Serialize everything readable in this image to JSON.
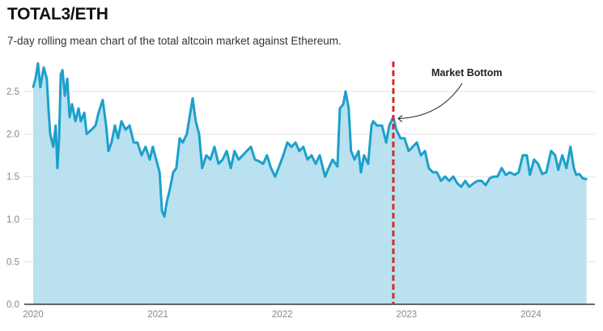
{
  "title": "TOTAL3/ETH",
  "subtitle": "7-day rolling mean chart of the total altcoin market against Ethereum.",
  "colors": {
    "line": "#1ca0cc",
    "fill": "#b9e1ef",
    "marker_line": "#d42a25",
    "grid": "#e3e3e3",
    "axis": "#111111"
  },
  "chart_data": {
    "type": "area",
    "title": "TOTAL3/ETH",
    "xlabel": "",
    "ylabel": "",
    "ylim": [
      0,
      2.9
    ],
    "xlim": [
      "2019-12-20",
      "2024-06-30"
    ],
    "grid": true,
    "y_ticks": [
      "0.0",
      "0.5",
      "1.0",
      "1.5",
      "2.0",
      "2.5"
    ],
    "x_ticks": [
      "2020",
      "2021",
      "2022",
      "2023",
      "2024"
    ],
    "annotation": {
      "label": "Market Bottom",
      "date": "2022-11-23",
      "style": "red dashed vertical line with arrow"
    },
    "series": [
      {
        "points": [
          [
            "2020-01-01",
            2.55
          ],
          [
            "2020-01-08",
            2.65
          ],
          [
            "2020-01-15",
            2.83
          ],
          [
            "2020-01-22",
            2.55
          ],
          [
            "2020-02-01",
            2.78
          ],
          [
            "2020-02-10",
            2.65
          ],
          [
            "2020-02-15",
            2.3
          ],
          [
            "2020-02-20",
            2.0
          ],
          [
            "2020-02-29",
            1.85
          ],
          [
            "2020-03-07",
            2.1
          ],
          [
            "2020-03-12",
            1.6
          ],
          [
            "2020-03-17",
            1.95
          ],
          [
            "2020-03-22",
            2.7
          ],
          [
            "2020-03-27",
            2.75
          ],
          [
            "2020-04-03",
            2.45
          ],
          [
            "2020-04-10",
            2.65
          ],
          [
            "2020-04-17",
            2.2
          ],
          [
            "2020-04-24",
            2.35
          ],
          [
            "2020-05-04",
            2.15
          ],
          [
            "2020-05-13",
            2.3
          ],
          [
            "2020-05-20",
            2.15
          ],
          [
            "2020-05-30",
            2.25
          ],
          [
            "2020-06-06",
            2.0
          ],
          [
            "2020-06-20",
            2.05
          ],
          [
            "2020-07-02",
            2.1
          ],
          [
            "2020-07-11",
            2.25
          ],
          [
            "2020-07-23",
            2.4
          ],
          [
            "2020-08-02",
            2.1
          ],
          [
            "2020-08-09",
            1.8
          ],
          [
            "2020-08-18",
            1.9
          ],
          [
            "2020-08-28",
            2.1
          ],
          [
            "2020-09-06",
            1.95
          ],
          [
            "2020-09-16",
            2.15
          ],
          [
            "2020-09-28",
            2.05
          ],
          [
            "2020-10-10",
            2.1
          ],
          [
            "2020-10-22",
            1.9
          ],
          [
            "2020-11-02",
            1.9
          ],
          [
            "2020-11-14",
            1.75
          ],
          [
            "2020-11-26",
            1.85
          ],
          [
            "2020-12-08",
            1.7
          ],
          [
            "2020-12-17",
            1.85
          ],
          [
            "2020-12-27",
            1.7
          ],
          [
            "2021-01-06",
            1.55
          ],
          [
            "2021-01-13",
            1.1
          ],
          [
            "2021-01-20",
            1.03
          ],
          [
            "2021-01-27",
            1.2
          ],
          [
            "2021-02-05",
            1.35
          ],
          [
            "2021-02-15",
            1.55
          ],
          [
            "2021-02-24",
            1.6
          ],
          [
            "2021-03-06",
            1.95
          ],
          [
            "2021-03-15",
            1.9
          ],
          [
            "2021-03-27",
            2.0
          ],
          [
            "2021-04-06",
            2.25
          ],
          [
            "2021-04-13",
            2.42
          ],
          [
            "2021-04-22",
            2.15
          ],
          [
            "2021-05-02",
            2.0
          ],
          [
            "2021-05-11",
            1.6
          ],
          [
            "2021-05-23",
            1.75
          ],
          [
            "2021-06-04",
            1.7
          ],
          [
            "2021-06-16",
            1.85
          ],
          [
            "2021-06-28",
            1.65
          ],
          [
            "2021-07-10",
            1.7
          ],
          [
            "2021-07-22",
            1.8
          ],
          [
            "2021-08-03",
            1.6
          ],
          [
            "2021-08-14",
            1.8
          ],
          [
            "2021-08-26",
            1.7
          ],
          [
            "2021-09-07",
            1.75
          ],
          [
            "2021-09-19",
            1.8
          ],
          [
            "2021-10-01",
            1.85
          ],
          [
            "2021-10-13",
            1.7
          ],
          [
            "2021-10-25",
            1.68
          ],
          [
            "2021-11-06",
            1.65
          ],
          [
            "2021-11-17",
            1.75
          ],
          [
            "2021-11-29",
            1.6
          ],
          [
            "2021-12-11",
            1.5
          ],
          [
            "2021-12-23",
            1.62
          ],
          [
            "2022-01-04",
            1.75
          ],
          [
            "2022-01-16",
            1.9
          ],
          [
            "2022-01-28",
            1.85
          ],
          [
            "2022-02-09",
            1.9
          ],
          [
            "2022-02-20",
            1.8
          ],
          [
            "2022-03-04",
            1.85
          ],
          [
            "2022-03-16",
            1.7
          ],
          [
            "2022-03-28",
            1.75
          ],
          [
            "2022-04-09",
            1.65
          ],
          [
            "2022-04-21",
            1.75
          ],
          [
            "2022-05-07",
            1.5
          ],
          [
            "2022-05-17",
            1.6
          ],
          [
            "2022-05-29",
            1.7
          ],
          [
            "2022-06-12",
            1.62
          ],
          [
            "2022-06-19",
            2.3
          ],
          [
            "2022-06-29",
            2.35
          ],
          [
            "2022-07-06",
            2.5
          ],
          [
            "2022-07-15",
            2.3
          ],
          [
            "2022-07-22",
            1.8
          ],
          [
            "2022-08-01",
            1.7
          ],
          [
            "2022-08-13",
            1.8
          ],
          [
            "2022-08-20",
            1.55
          ],
          [
            "2022-08-29",
            1.75
          ],
          [
            "2022-09-10",
            1.65
          ],
          [
            "2022-09-20",
            2.1
          ],
          [
            "2022-09-25",
            2.15
          ],
          [
            "2022-10-06",
            2.1
          ],
          [
            "2022-10-21",
            2.1
          ],
          [
            "2022-11-02",
            1.9
          ],
          [
            "2022-11-11",
            2.1
          ],
          [
            "2022-11-23",
            2.2
          ],
          [
            "2022-12-02",
            2.05
          ],
          [
            "2022-12-14",
            1.95
          ],
          [
            "2022-12-26",
            1.95
          ],
          [
            "2023-01-07",
            1.8
          ],
          [
            "2023-01-19",
            1.85
          ],
          [
            "2023-01-31",
            1.9
          ],
          [
            "2023-02-12",
            1.75
          ],
          [
            "2023-02-24",
            1.8
          ],
          [
            "2023-03-07",
            1.6
          ],
          [
            "2023-03-19",
            1.55
          ],
          [
            "2023-03-31",
            1.55
          ],
          [
            "2023-04-12",
            1.45
          ],
          [
            "2023-04-24",
            1.5
          ],
          [
            "2023-05-06",
            1.45
          ],
          [
            "2023-05-18",
            1.5
          ],
          [
            "2023-05-30",
            1.42
          ],
          [
            "2023-06-10",
            1.38
          ],
          [
            "2023-06-22",
            1.45
          ],
          [
            "2023-07-04",
            1.38
          ],
          [
            "2023-07-16",
            1.42
          ],
          [
            "2023-07-28",
            1.45
          ],
          [
            "2023-08-09",
            1.45
          ],
          [
            "2023-08-21",
            1.4
          ],
          [
            "2023-09-02",
            1.48
          ],
          [
            "2023-09-13",
            1.5
          ],
          [
            "2023-09-25",
            1.5
          ],
          [
            "2023-10-07",
            1.6
          ],
          [
            "2023-10-19",
            1.52
          ],
          [
            "2023-10-31",
            1.55
          ],
          [
            "2023-11-14",
            1.52
          ],
          [
            "2023-11-26",
            1.55
          ],
          [
            "2023-12-08",
            1.75
          ],
          [
            "2023-12-20",
            1.75
          ],
          [
            "2023-12-29",
            1.52
          ],
          [
            "2024-01-10",
            1.7
          ],
          [
            "2024-01-22",
            1.65
          ],
          [
            "2024-02-03",
            1.53
          ],
          [
            "2024-02-15",
            1.55
          ],
          [
            "2024-02-29",
            1.8
          ],
          [
            "2024-03-12",
            1.75
          ],
          [
            "2024-03-21",
            1.58
          ],
          [
            "2024-04-02",
            1.75
          ],
          [
            "2024-04-14",
            1.6
          ],
          [
            "2024-04-26",
            1.85
          ],
          [
            "2024-05-06",
            1.6
          ],
          [
            "2024-05-13",
            1.52
          ],
          [
            "2024-05-22",
            1.53
          ],
          [
            "2024-06-01",
            1.48
          ],
          [
            "2024-06-12",
            1.47
          ]
        ]
      }
    ]
  }
}
